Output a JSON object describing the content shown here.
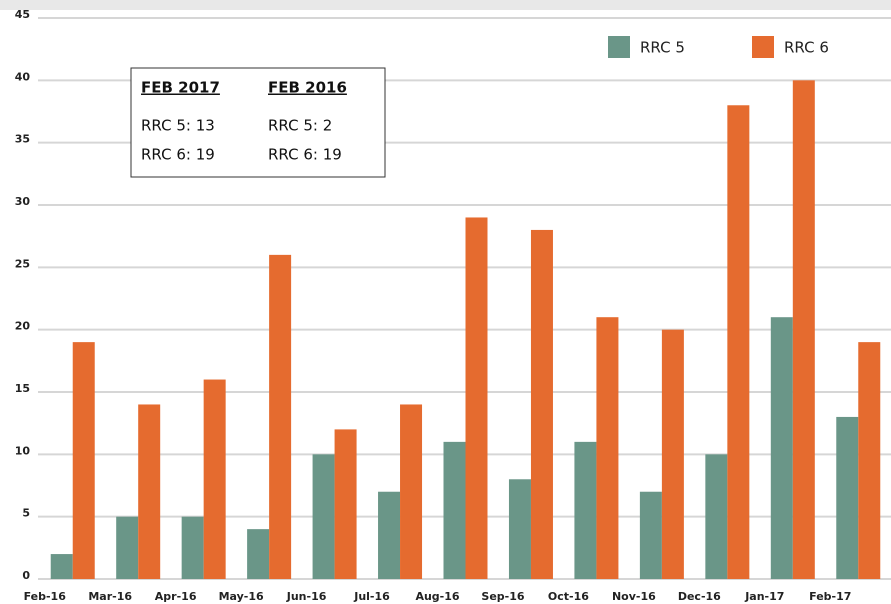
{
  "chart_data": {
    "type": "bar",
    "categories": [
      "Feb-16",
      "Mar-16",
      "Apr-16",
      "May-16",
      "Jun-16",
      "Jul-16",
      "Aug-16",
      "Sep-16",
      "Oct-16",
      "Nov-16",
      "Dec-16",
      "Jan-17",
      "Feb-17"
    ],
    "series": [
      {
        "name": "RRC 5",
        "color": "#6a9688",
        "values": [
          2,
          5,
          5,
          4,
          10,
          7,
          11,
          8,
          11,
          7,
          10,
          21,
          13
        ]
      },
      {
        "name": "RRC 6",
        "color": "#e56b2f",
        "values": [
          19,
          14,
          16,
          26,
          12,
          14,
          29,
          28,
          21,
          20,
          38,
          40,
          19
        ]
      }
    ],
    "ylim": [
      0,
      45
    ],
    "yticks": [
      0,
      5,
      10,
      15,
      20,
      25,
      30,
      35,
      40,
      45
    ],
    "grid": true,
    "annotation_table": {
      "headers": [
        "FEB 2017",
        "FEB 2016"
      ],
      "rows": [
        [
          "RRC 5: 13",
          "RRC 5: 2"
        ],
        [
          "RRC 6: 19",
          "RRC 6: 19"
        ]
      ]
    }
  }
}
